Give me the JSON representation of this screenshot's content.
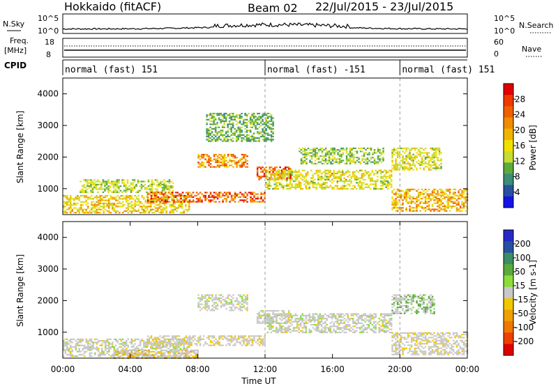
{
  "header": {
    "station": "Hokkaido (fitACF)",
    "beam": "Beam 02",
    "date_range": "22/Jul/2015 - 23/Jul/2015"
  },
  "noise_panel": {
    "label": "N.Sky",
    "right_label": "N.Search",
    "tick_top": "10^5",
    "tick_bottom": "10^0"
  },
  "freq_panel": {
    "label_line1": "Freq.",
    "label_line2": "[MHz]",
    "tick_top": "18",
    "tick_bottom": "8",
    "right_label": "Nave",
    "right_tick_top": "60",
    "right_tick_bottom": "0"
  },
  "cpid_panel": {
    "label": "CPID",
    "segments": [
      {
        "text": "normal (fast) 151",
        "start_hour": 0
      },
      {
        "text": "normal (fast) -151",
        "start_hour": 12
      },
      {
        "text": "normal (fast) 151",
        "start_hour": 20
      }
    ]
  },
  "power_colorbar": {
    "label": "Power [dB]",
    "ticks": [
      "28",
      "24",
      "20",
      "16",
      "12",
      "8",
      "4"
    ],
    "colors": [
      "#e00000",
      "#f03800",
      "#f06000",
      "#f08c00",
      "#f0b400",
      "#f0e000",
      "#c8dc32",
      "#5aaa3c",
      "#3c8c78",
      "#2850a0",
      "#1414e6"
    ]
  },
  "velocity_colorbar": {
    "label": "Velocity [m s-1]",
    "ticks": [
      "200",
      "100",
      "50",
      "15",
      "-15",
      "-50",
      "-100",
      "-200"
    ],
    "colors": [
      "#2828c8",
      "#2850a0",
      "#3c8c64",
      "#5aaa3c",
      "#8cdc3c",
      "#c8c8c8",
      "#f0c800",
      "#f0a000",
      "#f07800",
      "#f04000",
      "#e00000"
    ]
  },
  "chart_data": [
    {
      "type": "heatmap",
      "title": "",
      "xlabel": "",
      "ylabel": "Slant Range [km]",
      "xlim": [
        0,
        24
      ],
      "ylim": [
        180,
        4500
      ],
      "yticks": [
        1000,
        2000,
        3000,
        4000
      ],
      "measure": "Power [dB]",
      "echo_regions": [
        {
          "t0": 0.0,
          "t1": 7.5,
          "r0": 250,
          "r1": 800,
          "level": 20
        },
        {
          "t0": 1.0,
          "t1": 6.5,
          "r0": 900,
          "r1": 1300,
          "level": 16
        },
        {
          "t0": 5.0,
          "t1": 12.0,
          "r0": 600,
          "r1": 900,
          "level": 26
        },
        {
          "t0": 8.0,
          "t1": 11.0,
          "r0": 1700,
          "r1": 2100,
          "level": 24
        },
        {
          "t0": 11.5,
          "t1": 13.5,
          "r0": 1300,
          "r1": 1700,
          "level": 28
        },
        {
          "t0": 12.0,
          "t1": 19.5,
          "r0": 1000,
          "r1": 1600,
          "level": 18
        },
        {
          "t0": 14.0,
          "t1": 19.0,
          "r0": 1800,
          "r1": 2300,
          "level": 14
        },
        {
          "t0": 19.5,
          "t1": 24.0,
          "r0": 300,
          "r1": 1000,
          "level": 22
        },
        {
          "t0": 19.5,
          "t1": 22.5,
          "r0": 1600,
          "r1": 2300,
          "level": 18
        },
        {
          "t0": 8.5,
          "t1": 12.5,
          "r0": 2500,
          "r1": 3400,
          "level": 12
        }
      ]
    },
    {
      "type": "heatmap",
      "title": "",
      "xlabel": "Time UT",
      "ylabel": "Slant Range [km]",
      "xlim": [
        0,
        24
      ],
      "ylim": [
        180,
        4500
      ],
      "yticks": [
        1000,
        2000,
        3000,
        4000
      ],
      "xticks": [
        "00:00",
        "04:00",
        "08:00",
        "12:00",
        "16:00",
        "20:00",
        "00:00"
      ],
      "measure": "Velocity [m s-1]",
      "echo_regions": [
        {
          "t0": 0.0,
          "t1": 7.5,
          "r0": 250,
          "r1": 800,
          "level": 0
        },
        {
          "t0": 5.0,
          "t1": 12.0,
          "r0": 600,
          "r1": 900,
          "level": -15
        },
        {
          "t0": 8.0,
          "t1": 11.0,
          "r0": 1700,
          "r1": 2200,
          "level": 0
        },
        {
          "t0": 11.5,
          "t1": 13.5,
          "r0": 1300,
          "r1": 1700,
          "level": 0
        },
        {
          "t0": 12.0,
          "t1": 19.5,
          "r0": 1000,
          "r1": 1600,
          "level": 0
        },
        {
          "t0": 19.5,
          "t1": 24.0,
          "r0": 300,
          "r1": 1000,
          "level": -15
        },
        {
          "t0": 19.5,
          "t1": 22.0,
          "r0": 1600,
          "r1": 2200,
          "level": 30
        },
        {
          "t0": 3.0,
          "t1": 8.0,
          "r0": 180,
          "r1": 450,
          "level": -40
        }
      ]
    }
  ]
}
